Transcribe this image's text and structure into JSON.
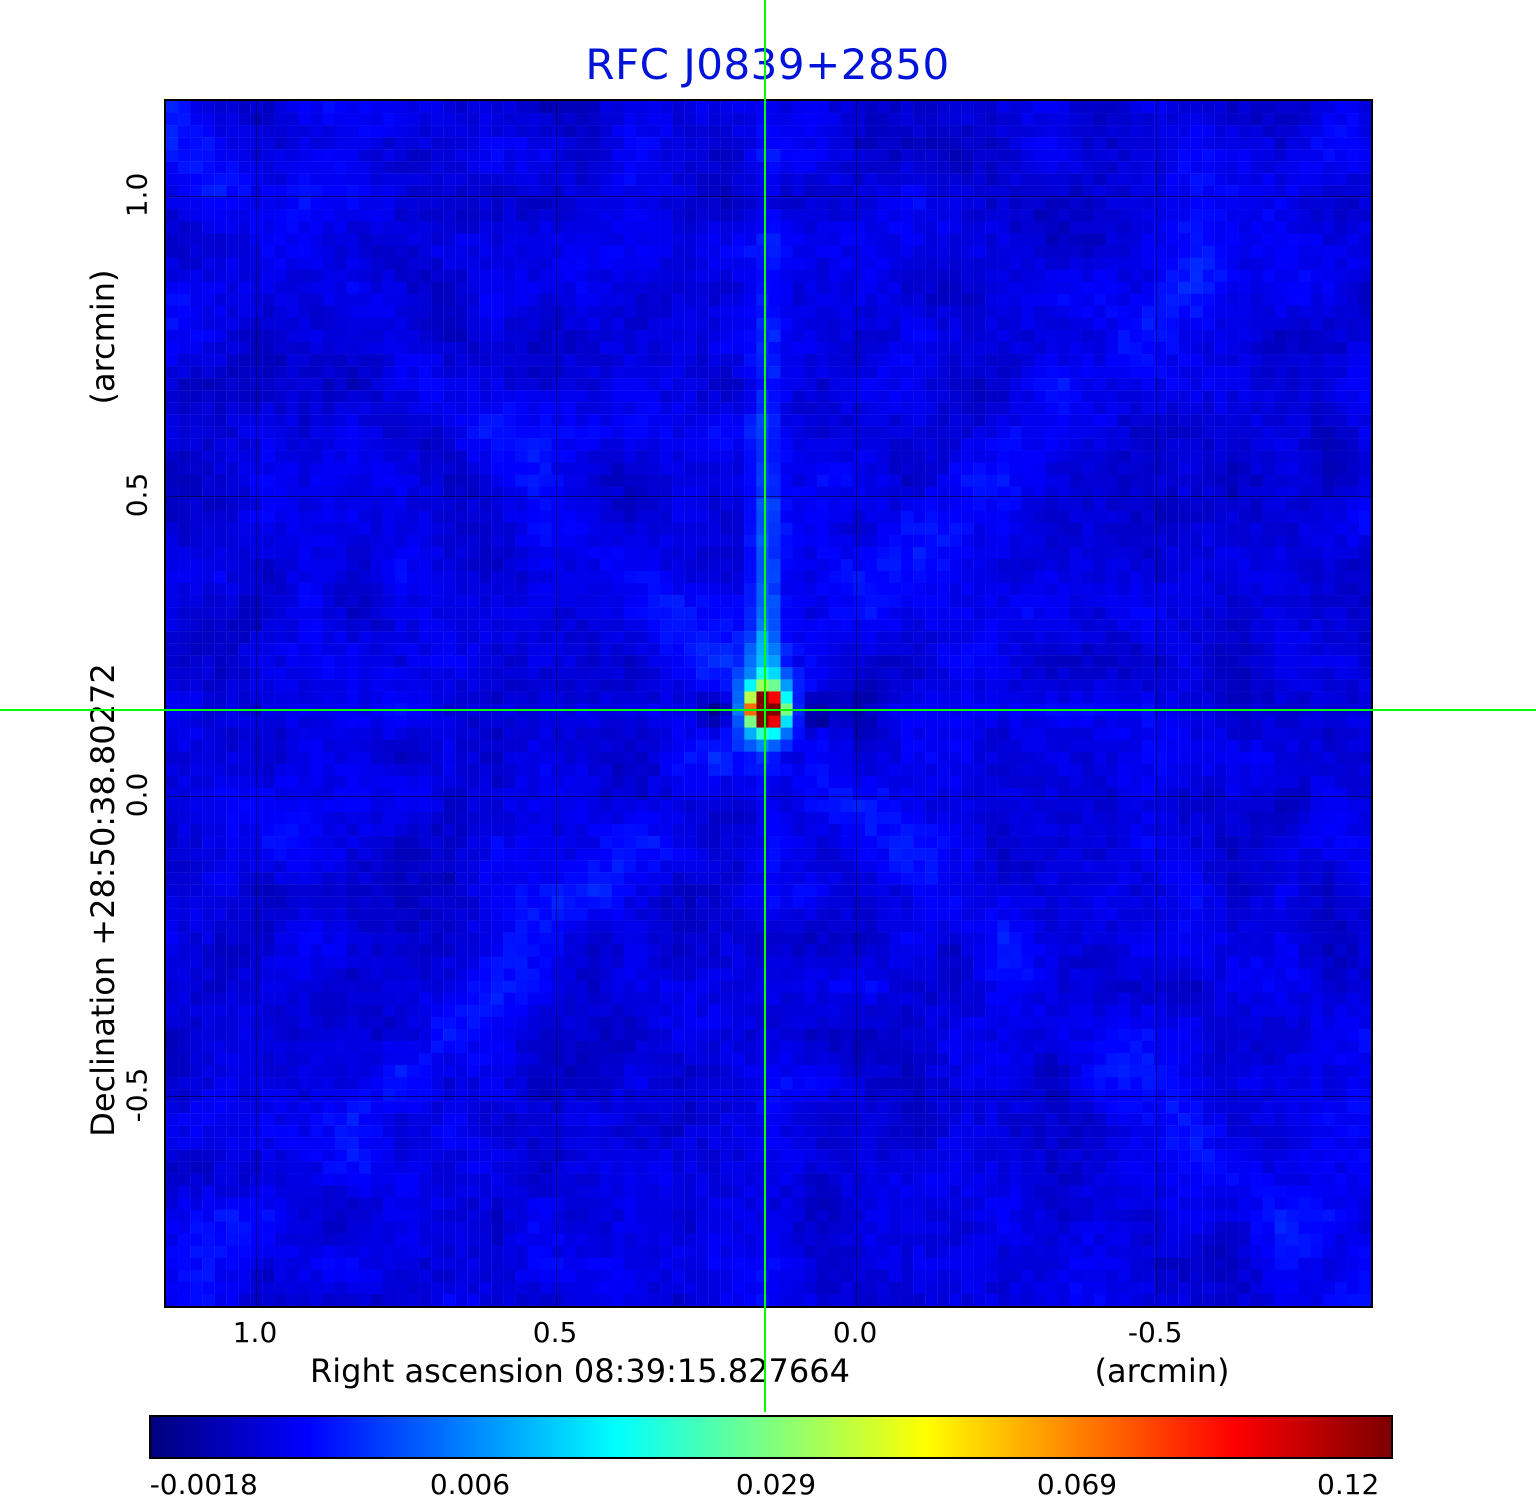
{
  "chart_data": {
    "type": "heatmap",
    "title": "RFC J0839+2850",
    "title_color": "#0013d9",
    "xlabel": "Right ascension  08:39:15.827664",
    "xunit_label": "(arcmin)",
    "ylabel": "Declination  +28:50:38.80272",
    "yunit_label": "(arcmin)",
    "xlim": [
      1.15,
      -0.858
    ],
    "ylim": [
      -0.85,
      1.158
    ],
    "xtick_values": [
      1.0,
      0.5,
      0.0,
      -0.5
    ],
    "xtick_labels": [
      "1.0",
      "0.5",
      "0.0",
      "-0.5"
    ],
    "ytick_values": [
      1.0,
      0.5,
      0.0,
      -0.5
    ],
    "ytick_labels": [
      "1.0",
      "0.5",
      "0.0",
      "-0.5"
    ],
    "grid": true,
    "colormap": "jet",
    "crosshair_color": "#00ff00",
    "crosshair": {
      "x_arcmin": 0.15,
      "y_arcmin": 0.142
    },
    "source": {
      "x_arcmin": 0.15,
      "y_arcmin": 0.142,
      "peak_label": "0.12"
    },
    "colorbar": {
      "orientation": "horizontal",
      "tick_labels": [
        "-0.0018",
        "0.006",
        "0.029",
        "0.069",
        "0.12"
      ],
      "tick_positions": [
        0.044,
        0.258,
        0.504,
        0.746,
        0.964
      ]
    }
  }
}
